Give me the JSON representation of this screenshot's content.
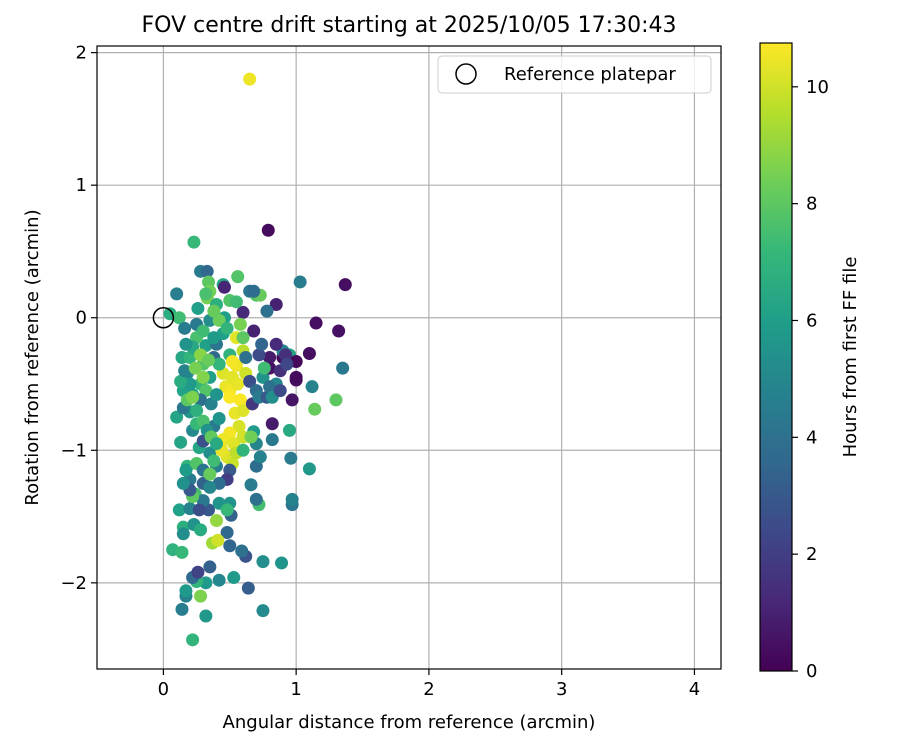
{
  "chart_data": {
    "type": "scatter",
    "title": "FOV centre drift starting at 2025/10/05 17:30:43",
    "xlabel": "Angular distance from reference (arcmin)",
    "ylabel": "Rotation from reference (arcmin)",
    "xlim": [
      -0.5,
      4.2
    ],
    "ylim": [
      -2.65,
      2.05
    ],
    "xticks": [
      0,
      1,
      2,
      3,
      4
    ],
    "yticks": [
      -2,
      -1,
      0,
      1,
      2
    ],
    "xtick_labels": [
      "0",
      "1",
      "2",
      "3",
      "4"
    ],
    "ytick_labels": [
      "−2",
      "−1",
      "0",
      "1",
      "2"
    ],
    "grid": true,
    "colormap": "viridis",
    "colorbar": {
      "label": "Hours from first FF file",
      "range": [
        0,
        10.75
      ],
      "ticks": [
        0,
        2,
        4,
        6,
        8,
        10
      ],
      "tick_labels": [
        "0",
        "2",
        "4",
        "6",
        "8",
        "10"
      ]
    },
    "legend": {
      "placement": "top-right",
      "entries": [
        {
          "label": "Reference platepar",
          "marker": "open-circle"
        }
      ]
    },
    "reference_point": {
      "x": 0,
      "y": 0
    },
    "series": [
      {
        "points": [
          [
            0.65,
            1.8,
            10.5
          ],
          [
            0.79,
            0.66,
            0.3
          ],
          [
            1.37,
            0.25,
            0.4
          ],
          [
            1.03,
            0.27,
            4.5
          ],
          [
            1.15,
            -0.04,
            0.4
          ],
          [
            1.32,
            -0.1,
            0.5
          ],
          [
            1.35,
            -0.38,
            4.3
          ],
          [
            1.3,
            -0.62,
            8.0
          ],
          [
            1.14,
            -0.69,
            8.2
          ],
          [
            1.1,
            -1.14,
            5.7
          ],
          [
            0.96,
            -1.06,
            4.5
          ],
          [
            0.95,
            -0.85,
            6.5
          ],
          [
            0.82,
            -0.92,
            4.3
          ],
          [
            0.82,
            -0.8,
            0.8
          ],
          [
            0.97,
            -0.62,
            0.6
          ],
          [
            1.0,
            -0.47,
            0.4
          ],
          [
            0.9,
            -0.3,
            0.3
          ],
          [
            0.8,
            -0.3,
            0.8
          ],
          [
            0.85,
            0.1,
            1.0
          ],
          [
            0.78,
            0.05,
            4.0
          ],
          [
            0.97,
            -1.41,
            4.2
          ],
          [
            0.97,
            -1.37,
            4.8
          ],
          [
            0.72,
            -1.41,
            7.5
          ],
          [
            0.7,
            -1.37,
            4.0
          ],
          [
            0.66,
            -1.26,
            4.5
          ],
          [
            0.75,
            -1.84,
            5.3
          ],
          [
            0.89,
            -1.85,
            5.6
          ],
          [
            0.75,
            -2.21,
            5.1
          ],
          [
            0.64,
            -2.04,
            3.2
          ],
          [
            0.53,
            -1.96,
            5.8
          ],
          [
            0.62,
            -1.8,
            2.8
          ],
          [
            0.59,
            -1.76,
            4.0
          ],
          [
            0.48,
            -1.62,
            3.6
          ],
          [
            0.42,
            -1.98,
            5.0
          ],
          [
            0.35,
            -1.88,
            3.3
          ],
          [
            0.32,
            -2.0,
            5.8
          ],
          [
            0.25,
            -1.99,
            7.0
          ],
          [
            0.28,
            -2.1,
            8.6
          ],
          [
            0.32,
            -2.25,
            5.7
          ],
          [
            0.22,
            -2.43,
            7.0
          ],
          [
            0.14,
            -2.2,
            4.6
          ],
          [
            0.17,
            -2.1,
            4.8
          ],
          [
            0.17,
            -2.06,
            5.8
          ],
          [
            0.07,
            -1.75,
            6.9
          ],
          [
            0.14,
            -1.77,
            7.2
          ],
          [
            0.22,
            -1.96,
            3.7
          ],
          [
            0.26,
            -1.92,
            2.2
          ],
          [
            0.15,
            -1.58,
            6.8
          ],
          [
            0.15,
            -1.63,
            5.3
          ],
          [
            0.23,
            -1.56,
            5.5
          ],
          [
            0.12,
            -1.45,
            6.1
          ],
          [
            0.2,
            -1.44,
            4.8
          ],
          [
            0.37,
            -1.7,
            9.2
          ],
          [
            0.41,
            -1.68,
            10.0
          ],
          [
            0.4,
            -1.53,
            9.0
          ],
          [
            0.34,
            -1.45,
            3.0
          ],
          [
            0.51,
            -1.49,
            3.4
          ],
          [
            0.5,
            -1.4,
            5.5
          ],
          [
            0.22,
            -0.58,
            6.2
          ],
          [
            0.26,
            0.07,
            6.0
          ],
          [
            0.28,
            0.35,
            4.5
          ],
          [
            0.33,
            0.35,
            3.6
          ],
          [
            0.23,
            0.57,
            7.2
          ],
          [
            0.56,
            0.31,
            7.8
          ],
          [
            0.34,
            0.27,
            8.0
          ],
          [
            0.35,
            0.2,
            8.4
          ],
          [
            0.45,
            0.25,
            6.4
          ],
          [
            0.46,
            0.23,
            1.1
          ],
          [
            0.33,
            0.15,
            8.5
          ],
          [
            0.4,
            0.1,
            6.8
          ],
          [
            0.46,
            0.0,
            6.0
          ],
          [
            0.5,
            0.13,
            7.8
          ],
          [
            0.6,
            0.04,
            1.2
          ],
          [
            0.65,
            0.2,
            4.2
          ],
          [
            0.7,
            0.17,
            7.8
          ],
          [
            0.73,
            0.17,
            8.2
          ],
          [
            0.68,
            0.2,
            3.8
          ],
          [
            0.1,
            0.18,
            4.6
          ],
          [
            0.05,
            0.03,
            6.7
          ],
          [
            0.12,
            0.0,
            7.4
          ],
          [
            0.16,
            -0.08,
            4.5
          ],
          [
            0.14,
            -0.3,
            6.4
          ],
          [
            0.18,
            -0.42,
            5.0
          ],
          [
            0.15,
            -0.55,
            6.2
          ],
          [
            0.2,
            -0.71,
            5.6
          ],
          [
            0.1,
            -0.75,
            6.3
          ],
          [
            0.13,
            -0.94,
            6.3
          ],
          [
            0.18,
            -1.12,
            7.0
          ],
          [
            0.2,
            -1.22,
            4.4
          ],
          [
            0.24,
            -1.33,
            7.5
          ],
          [
            0.3,
            -1.25,
            3.4
          ],
          [
            0.35,
            -1.02,
            5.2
          ],
          [
            0.38,
            -0.82,
            4.4
          ],
          [
            0.42,
            -0.76,
            5.6
          ],
          [
            0.28,
            -0.5,
            7.1
          ],
          [
            0.3,
            -0.35,
            7.8
          ],
          [
            0.32,
            -0.21,
            6.0
          ],
          [
            0.25,
            -0.15,
            7.6
          ],
          [
            0.4,
            -0.2,
            4.2
          ],
          [
            0.45,
            -0.12,
            6.0
          ],
          [
            0.5,
            -0.28,
            6.9
          ],
          [
            0.45,
            -0.42,
            10.2
          ],
          [
            0.47,
            -0.52,
            10.4
          ],
          [
            0.5,
            -0.55,
            10.6
          ],
          [
            0.52,
            -0.45,
            10.3
          ],
          [
            0.55,
            -0.36,
            10.5
          ],
          [
            0.58,
            -0.62,
            10.7
          ],
          [
            0.54,
            -0.72,
            10.4
          ],
          [
            0.6,
            -0.7,
            10.2
          ],
          [
            0.57,
            -0.82,
            10.1
          ],
          [
            0.5,
            -0.87,
            10.6
          ],
          [
            0.45,
            -0.92,
            10.5
          ],
          [
            0.53,
            -0.95,
            10.3
          ],
          [
            0.48,
            -1.05,
            10.2
          ],
          [
            0.52,
            -1.1,
            9.9
          ],
          [
            0.44,
            -1.0,
            10.4
          ],
          [
            0.6,
            -0.9,
            10.0
          ],
          [
            0.55,
            -0.15,
            10.3
          ],
          [
            0.52,
            -0.33,
            10.6
          ],
          [
            0.56,
            -0.5,
            10.4
          ],
          [
            0.62,
            -0.42,
            10.0
          ],
          [
            0.6,
            -0.25,
            9.6
          ],
          [
            0.5,
            -0.6,
            10.7
          ],
          [
            0.55,
            -1.02,
            9.7
          ],
          [
            0.65,
            -0.48,
            2.6
          ],
          [
            0.7,
            -0.55,
            3.8
          ],
          [
            0.67,
            -0.65,
            1.8
          ],
          [
            0.72,
            -0.6,
            4.5
          ],
          [
            0.75,
            -0.45,
            5.5
          ],
          [
            0.62,
            -0.3,
            4.0
          ],
          [
            0.72,
            -0.28,
            2.5
          ],
          [
            0.78,
            -0.6,
            3.0
          ],
          [
            0.85,
            -0.5,
            5.0
          ],
          [
            0.8,
            -0.38,
            0.5
          ],
          [
            0.88,
            -0.4,
            1.5
          ],
          [
            0.95,
            -0.28,
            6.2
          ],
          [
            1.0,
            -0.33,
            0.2
          ],
          [
            0.9,
            -0.25,
            4.8
          ],
          [
            0.68,
            -0.1,
            1.0
          ],
          [
            0.74,
            -0.2,
            3.5
          ],
          [
            0.76,
            -0.38,
            7.4
          ],
          [
            0.8,
            -0.52,
            4.0
          ],
          [
            0.82,
            -0.6,
            5.3
          ],
          [
            0.88,
            -0.55,
            2.5
          ],
          [
            0.92,
            -0.28,
            1.5
          ],
          [
            0.68,
            -0.86,
            5.9
          ],
          [
            0.7,
            -0.95,
            4.9
          ],
          [
            0.66,
            -0.9,
            8.4
          ],
          [
            0.6,
            -1.0,
            7.0
          ],
          [
            0.7,
            -1.12,
            3.8
          ],
          [
            0.73,
            -1.05,
            4.8
          ],
          [
            0.5,
            -1.15,
            3.0
          ],
          [
            0.48,
            -1.22,
            2.0
          ],
          [
            0.42,
            -1.25,
            3.8
          ],
          [
            0.4,
            -1.12,
            4.6
          ],
          [
            0.35,
            -1.28,
            5.0
          ],
          [
            0.3,
            -1.38,
            4.3
          ],
          [
            0.27,
            -1.45,
            2.6
          ],
          [
            0.22,
            -1.35,
            8.0
          ],
          [
            0.2,
            -1.3,
            3.0
          ],
          [
            0.15,
            -1.25,
            5.4
          ],
          [
            0.17,
            -1.15,
            5.9
          ],
          [
            0.25,
            -1.1,
            7.8
          ],
          [
            0.27,
            -0.98,
            6.3
          ],
          [
            0.3,
            -0.93,
            2.7
          ],
          [
            0.22,
            -0.85,
            5.1
          ],
          [
            0.25,
            -0.8,
            7.2
          ],
          [
            0.15,
            -0.68,
            4.3
          ],
          [
            0.18,
            -0.62,
            8.0
          ],
          [
            0.2,
            -0.5,
            5.8
          ],
          [
            0.13,
            -0.48,
            6.6
          ],
          [
            0.16,
            -0.4,
            4.8
          ],
          [
            0.2,
            -0.3,
            7.0
          ],
          [
            0.22,
            -0.22,
            6.4
          ],
          [
            0.17,
            -0.2,
            5.5
          ],
          [
            0.25,
            -0.05,
            4.4
          ],
          [
            0.3,
            -0.1,
            7.4
          ],
          [
            0.35,
            -0.02,
            5.3
          ],
          [
            0.38,
            -0.3,
            3.6
          ],
          [
            0.35,
            -0.45,
            6.0
          ],
          [
            0.32,
            -0.55,
            7.8
          ],
          [
            0.36,
            -0.65,
            4.8
          ],
          [
            0.4,
            -0.58,
            5.6
          ],
          [
            0.42,
            -0.35,
            7.0
          ],
          [
            0.38,
            -0.15,
            5.9
          ],
          [
            0.42,
            -0.02,
            8.3
          ],
          [
            0.48,
            -0.08,
            7.0
          ],
          [
            0.28,
            -0.62,
            4.0
          ],
          [
            0.25,
            -0.7,
            6.8
          ],
          [
            0.3,
            -0.78,
            7.6
          ],
          [
            0.33,
            -0.85,
            5.5
          ],
          [
            0.36,
            -0.9,
            8.1
          ],
          [
            0.4,
            -0.95,
            6.5
          ],
          [
            0.38,
            -1.08,
            7.4
          ],
          [
            0.3,
            -1.15,
            4.2
          ],
          [
            0.35,
            -1.18,
            8.2
          ],
          [
            0.42,
            -1.4,
            5.6
          ],
          [
            0.48,
            -1.45,
            7.2
          ],
          [
            0.28,
            -0.28,
            8.8
          ],
          [
            0.24,
            -0.38,
            8.5
          ],
          [
            0.3,
            -0.45,
            8.7
          ],
          [
            0.34,
            -0.32,
            8.2
          ],
          [
            0.22,
            -0.6,
            8.6
          ],
          [
            0.58,
            -0.05,
            8.5
          ],
          [
            0.6,
            -0.15,
            8.0
          ],
          [
            0.38,
            0.05,
            8.2
          ],
          [
            0.32,
            0.18,
            7.6
          ],
          [
            0.55,
            0.12,
            7.4
          ],
          [
            0.28,
            -1.6,
            6.6
          ],
          [
            0.5,
            -1.72,
            3.5
          ],
          [
            1.0,
            -0.45,
            0.3
          ],
          [
            0.85,
            -0.2,
            1.3
          ],
          [
            0.93,
            -0.35,
            2.3
          ],
          [
            1.1,
            -0.27,
            0.4
          ],
          [
            1.12,
            -0.52,
            4.8
          ]
        ]
      }
    ]
  }
}
